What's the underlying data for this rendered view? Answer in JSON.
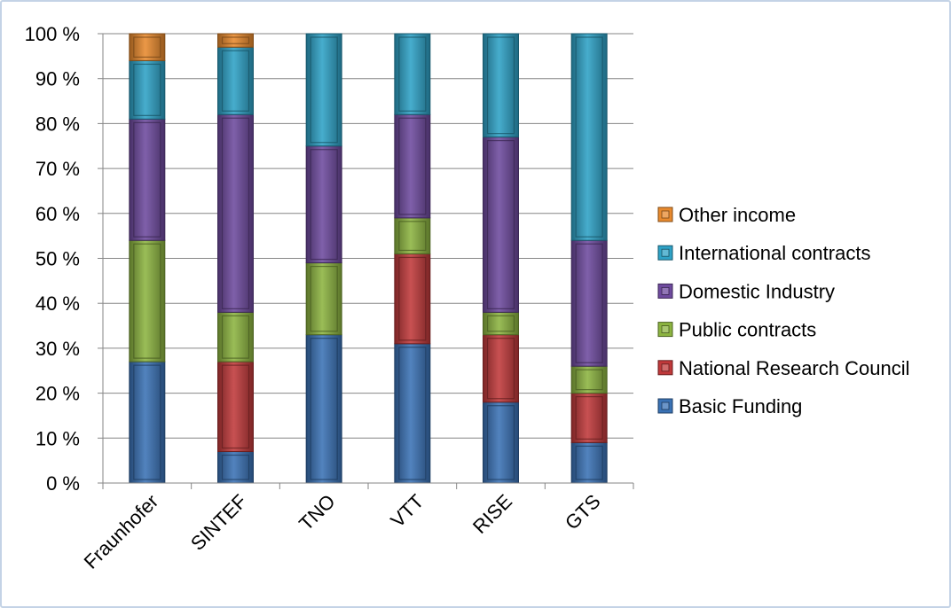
{
  "chart_data": {
    "type": "bar",
    "stacked": true,
    "percent": true,
    "categories": [
      "Fraunhofer",
      "SINTEF",
      "TNO",
      "VTT",
      "RISE",
      "GTS"
    ],
    "y_ticks": [
      "0 %",
      "10 %",
      "20 %",
      "30 %",
      "40 %",
      "50 %",
      "60 %",
      "70 %",
      "80 %",
      "90 %",
      "100 %"
    ],
    "ylim": [
      0,
      100
    ],
    "grid": true,
    "legend_position": "right",
    "series": [
      {
        "name": "Basic Funding",
        "color": "#3a72b5",
        "values": [
          27,
          7,
          33,
          31,
          18,
          9
        ]
      },
      {
        "name": "National Research Council",
        "color": "#c0393a",
        "values": [
          0,
          20,
          0,
          20,
          15,
          11
        ]
      },
      {
        "name": "Public contracts",
        "color": "#8cb440",
        "values": [
          27,
          11,
          16,
          8,
          5,
          6
        ]
      },
      {
        "name": "Domestic Industry",
        "color": "#6e4a9e",
        "values": [
          27,
          44,
          26,
          23,
          39,
          28
        ]
      },
      {
        "name": "International contracts",
        "color": "#2ea2c6",
        "values": [
          13,
          15,
          25,
          18,
          23,
          46
        ]
      },
      {
        "name": "Other income",
        "color": "#e88a2e",
        "values": [
          6,
          3,
          0,
          0,
          0,
          0
        ]
      }
    ]
  }
}
